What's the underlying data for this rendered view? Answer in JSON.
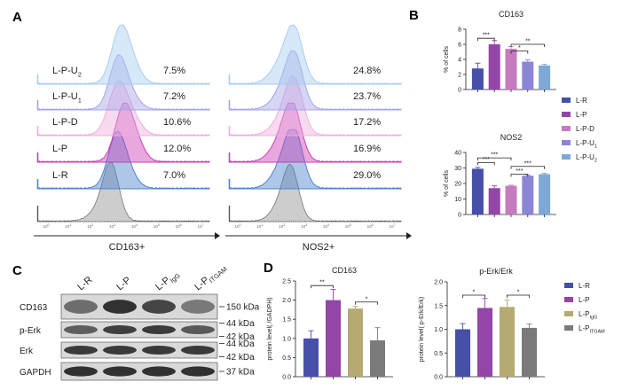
{
  "panels": {
    "A": {
      "label": "A",
      "row_labels": [
        "L-P-U2",
        "L-P-U1",
        "L-P-D",
        "L-P",
        "L-R"
      ],
      "row_colors": [
        "#a6cdf0",
        "#a4a4e6",
        "#eeaede",
        "#cc3fb6",
        "#4c82cd"
      ],
      "iso_color": "#c4c4c4",
      "cd163": {
        "axis_label": "CD163+",
        "pct": [
          "7.5%",
          "7.2%",
          "10.6%",
          "12.0%",
          "7.0%"
        ]
      },
      "nos2": {
        "axis_label": "NOS2+",
        "pct": [
          "24.8%",
          "23.7%",
          "17.2%",
          "16.9%",
          "29.0%"
        ]
      },
      "tick_labels": [
        "10^0",
        "10^1",
        "10^2",
        "10^3",
        "10^4",
        "10^5",
        "10^6",
        "10^7"
      ]
    },
    "B": {
      "label": "B"
    },
    "C": {
      "label": "C",
      "lanes": [
        "L-R",
        "L-P",
        "L-P IgG",
        "L-P ITGAM"
      ],
      "bands": [
        {
          "name": "CD163",
          "kda": [
            "150 kDa"
          ]
        },
        {
          "name": "p-Erk",
          "kda": [
            "44 kDa",
            "42 kDa"
          ]
        },
        {
          "name": "Erk",
          "kda": [
            "44 kDa",
            "42 kDa"
          ]
        },
        {
          "name": "GAPDH",
          "kda": [
            "37 kDa"
          ]
        }
      ]
    },
    "D": {
      "label": "D"
    }
  },
  "chart_data": [
    {
      "id": "B-CD163",
      "type": "bar",
      "title": "CD163",
      "ylabel": "% of cells",
      "categories": [
        "L-R",
        "L-P",
        "L-P-D",
        "L-P-U1",
        "L-P-U2"
      ],
      "values": [
        2.8,
        6.0,
        5.4,
        3.7,
        3.2
      ],
      "errors": [
        0.7,
        0.5,
        0.3,
        0.25,
        0.15
      ],
      "colors": [
        "#4650a8",
        "#9445a8",
        "#c77bbf",
        "#8b86d6",
        "#7fa8d6"
      ],
      "ylim": [
        0,
        8
      ],
      "yticks": [
        0,
        2,
        4,
        6,
        8
      ],
      "significance": [
        {
          "from": 0,
          "to": 1,
          "label": "***",
          "level": 6.8
        },
        {
          "from": 2,
          "to": 3,
          "label": "*",
          "level": 5.1
        },
        {
          "from": 2,
          "to": 4,
          "label": "**",
          "level": 6.0
        }
      ],
      "legend": [
        "L-R",
        "L-P",
        "L-P-D",
        "L-P-U1",
        "L-P-U2"
      ]
    },
    {
      "id": "B-NOS2",
      "type": "bar",
      "title": "NOS2",
      "ylabel": "% of cells",
      "categories": [
        "L-R",
        "L-P",
        "L-P-D",
        "L-P-U1",
        "L-P-U2"
      ],
      "values": [
        29.5,
        17.0,
        18.5,
        25.0,
        26.0
      ],
      "errors": [
        0.9,
        1.5,
        0.4,
        0.6,
        0.5
      ],
      "colors": [
        "#4650a8",
        "#9445a8",
        "#c77bbf",
        "#8b86d6",
        "#7fa8d6"
      ],
      "ylim": [
        0,
        40
      ],
      "yticks": [
        0,
        10,
        20,
        30,
        40
      ],
      "significance": [
        {
          "from": 0,
          "to": 1,
          "label": "***",
          "level": 33.5
        },
        {
          "from": 0,
          "to": 2,
          "label": "***",
          "level": 36.5
        },
        {
          "from": 2,
          "to": 3,
          "label": "***",
          "level": 26.0
        },
        {
          "from": 2,
          "to": 4,
          "label": "***",
          "level": 31.0
        }
      ]
    },
    {
      "id": "D-CD163",
      "type": "bar",
      "title": "CD163",
      "ylabel": "protein level( /GADPH)",
      "categories": [
        "L-R",
        "L-P",
        "L-P IgG",
        "L-P ITGAM"
      ],
      "values": [
        1.0,
        2.0,
        1.78,
        0.95
      ],
      "errors": [
        0.2,
        0.28,
        0.06,
        0.33
      ],
      "colors": [
        "#4650a8",
        "#9445a8",
        "#b4aa72",
        "#7a7a7a"
      ],
      "ylim": [
        0,
        2.5
      ],
      "yticks": [
        0.0,
        0.5,
        1.0,
        1.5,
        2.0,
        2.5
      ],
      "significance": [
        {
          "from": 0,
          "to": 1,
          "label": "**",
          "level": 2.38
        },
        {
          "from": 2,
          "to": 3,
          "label": "*",
          "level": 1.95
        }
      ],
      "legend": [
        "L-R",
        "L-P",
        "L-P IgG",
        "L-P ITGAM"
      ]
    },
    {
      "id": "D-pErk",
      "type": "bar",
      "title": "p-Erk/Erk",
      "ylabel": "protein level( p-Erk/Erk)",
      "categories": [
        "L-R",
        "L-P",
        "L-P IgG",
        "L-P ITGAM"
      ],
      "values": [
        1.0,
        1.45,
        1.47,
        1.03
      ],
      "errors": [
        0.12,
        0.2,
        0.15,
        0.08
      ],
      "colors": [
        "#4650a8",
        "#9445a8",
        "#b4aa72",
        "#7a7a7a"
      ],
      "ylim": [
        0,
        2.0
      ],
      "yticks": [
        0.0,
        0.5,
        1.0,
        1.5,
        2.0
      ],
      "significance": [
        {
          "from": 0,
          "to": 1,
          "label": "*",
          "level": 1.72
        },
        {
          "from": 2,
          "to": 3,
          "label": "*",
          "level": 1.72
        }
      ]
    }
  ]
}
